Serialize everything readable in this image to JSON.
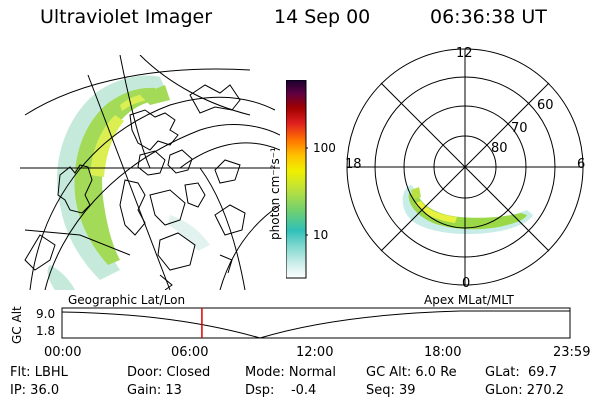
{
  "header": {
    "instrument": "Ultraviolet Imager",
    "date": "14 Sep 00",
    "time": "06:36:38 UT"
  },
  "colorbar": {
    "unit_label": "photon cm⁻²s⁻¹",
    "ticks": [
      "100",
      "10"
    ],
    "scale": "log",
    "colors": [
      "#ffffff",
      "#c8ece8",
      "#80d8d0",
      "#30c0b8",
      "#70d070",
      "#b8e040",
      "#f0f000",
      "#ffc000",
      "#ff7000",
      "#e02020",
      "#a00000",
      "#600040",
      "#180030"
    ]
  },
  "geo_panel": {
    "projection_label": "Geographic Lat/Lon",
    "aurora_color": "#9ad848"
  },
  "polar_panel": {
    "projection_label": "Apex MLat/MLT",
    "mlt_labels": {
      "top": "12",
      "left": "18",
      "right": "6",
      "bottom": "0"
    },
    "lat_labels": [
      "60",
      "70",
      "80"
    ]
  },
  "altitude_plot": {
    "y_label": "GC Alt",
    "y_ticks": [
      "9.0",
      "1.8"
    ],
    "x_ticks": [
      "00:00",
      "06:00",
      "12:00",
      "18:00",
      "23:59"
    ],
    "current_time_marker_hours": 6.61,
    "marker_color": "#e00000"
  },
  "info": {
    "filter": "Flt: LBHL",
    "ip": "IP: 36.0",
    "door": "Door: Closed",
    "gain": "Gain: 13",
    "mode": "Mode: Normal",
    "dsp": "Dsp:    -0.4",
    "gc_alt": "GC Alt: 6.0 Re",
    "seq": "Seq: 39",
    "glat": "GLat:  69.7",
    "glon": "GLon: 270.2"
  }
}
